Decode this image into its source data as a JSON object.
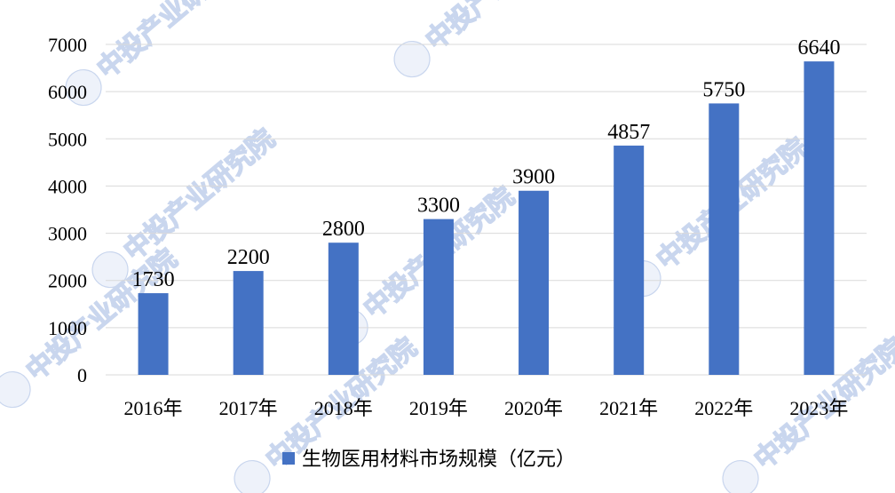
{
  "chart_data": {
    "type": "bar",
    "categories": [
      "2016年",
      "2017年",
      "2018年",
      "2019年",
      "2020年",
      "2021年",
      "2022年",
      "2023年"
    ],
    "series": [
      {
        "name": "生物医用材料市场规模（亿元）",
        "values": [
          1730,
          2200,
          2800,
          3300,
          3900,
          4857,
          5750,
          6640
        ]
      }
    ],
    "ylim": [
      0,
      7000
    ],
    "yticks": [
      0,
      1000,
      2000,
      3000,
      4000,
      5000,
      6000,
      7000
    ],
    "grid": true,
    "legend": "bottom",
    "title": "",
    "xlabel": "",
    "ylabel": ""
  },
  "colors": {
    "bar": "#4472c4",
    "grid": "#d9d9d9",
    "axis": "#d9d9d9"
  },
  "watermark": {
    "text": "中投产业研究院",
    "icon": "zt-logo-icon"
  }
}
